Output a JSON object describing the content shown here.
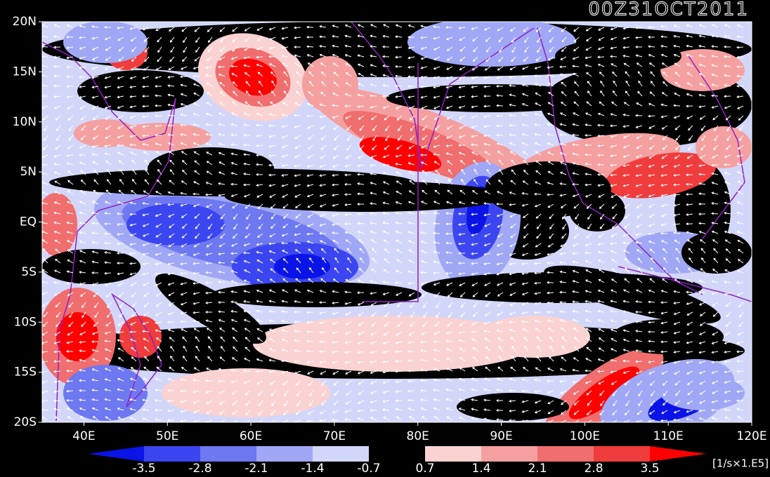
{
  "chart_data": {
    "type": "contour-map",
    "title": "00Z31OCT2011",
    "xlim": [
      35,
      120
    ],
    "ylim": [
      -20,
      20
    ],
    "xticks": [
      {
        "value": 40,
        "label": "40E"
      },
      {
        "value": 50,
        "label": "50E"
      },
      {
        "value": 60,
        "label": "60E"
      },
      {
        "value": 70,
        "label": "70E"
      },
      {
        "value": 80,
        "label": "80E"
      },
      {
        "value": 90,
        "label": "90E"
      },
      {
        "value": 100,
        "label": "100E"
      },
      {
        "value": 110,
        "label": "110E"
      },
      {
        "value": 120,
        "label": "120E"
      }
    ],
    "yticks": [
      {
        "value": 20,
        "label": "20N"
      },
      {
        "value": 15,
        "label": "15N"
      },
      {
        "value": 10,
        "label": "10N"
      },
      {
        "value": 5,
        "label": "5N"
      },
      {
        "value": 0,
        "label": "EQ"
      },
      {
        "value": -5,
        "label": "5S"
      },
      {
        "value": -10,
        "label": "10S"
      },
      {
        "value": -15,
        "label": "15S"
      },
      {
        "value": -20,
        "label": "20S"
      }
    ],
    "colorbar": {
      "levels": [
        -3.5,
        -2.8,
        -2.1,
        -1.4,
        -0.7,
        0.7,
        1.4,
        2.1,
        2.8,
        3.5
      ],
      "colors": [
        "#0a14e6",
        "#3c46f0",
        "#6e78f0",
        "#a0a8f5",
        "#d2d7fa",
        "#000000",
        "#fad2d2",
        "#f5a0a0",
        "#f06e6e",
        "#f03c3c",
        "#ff0000"
      ],
      "units": "[1/s×1.E5]"
    }
  }
}
